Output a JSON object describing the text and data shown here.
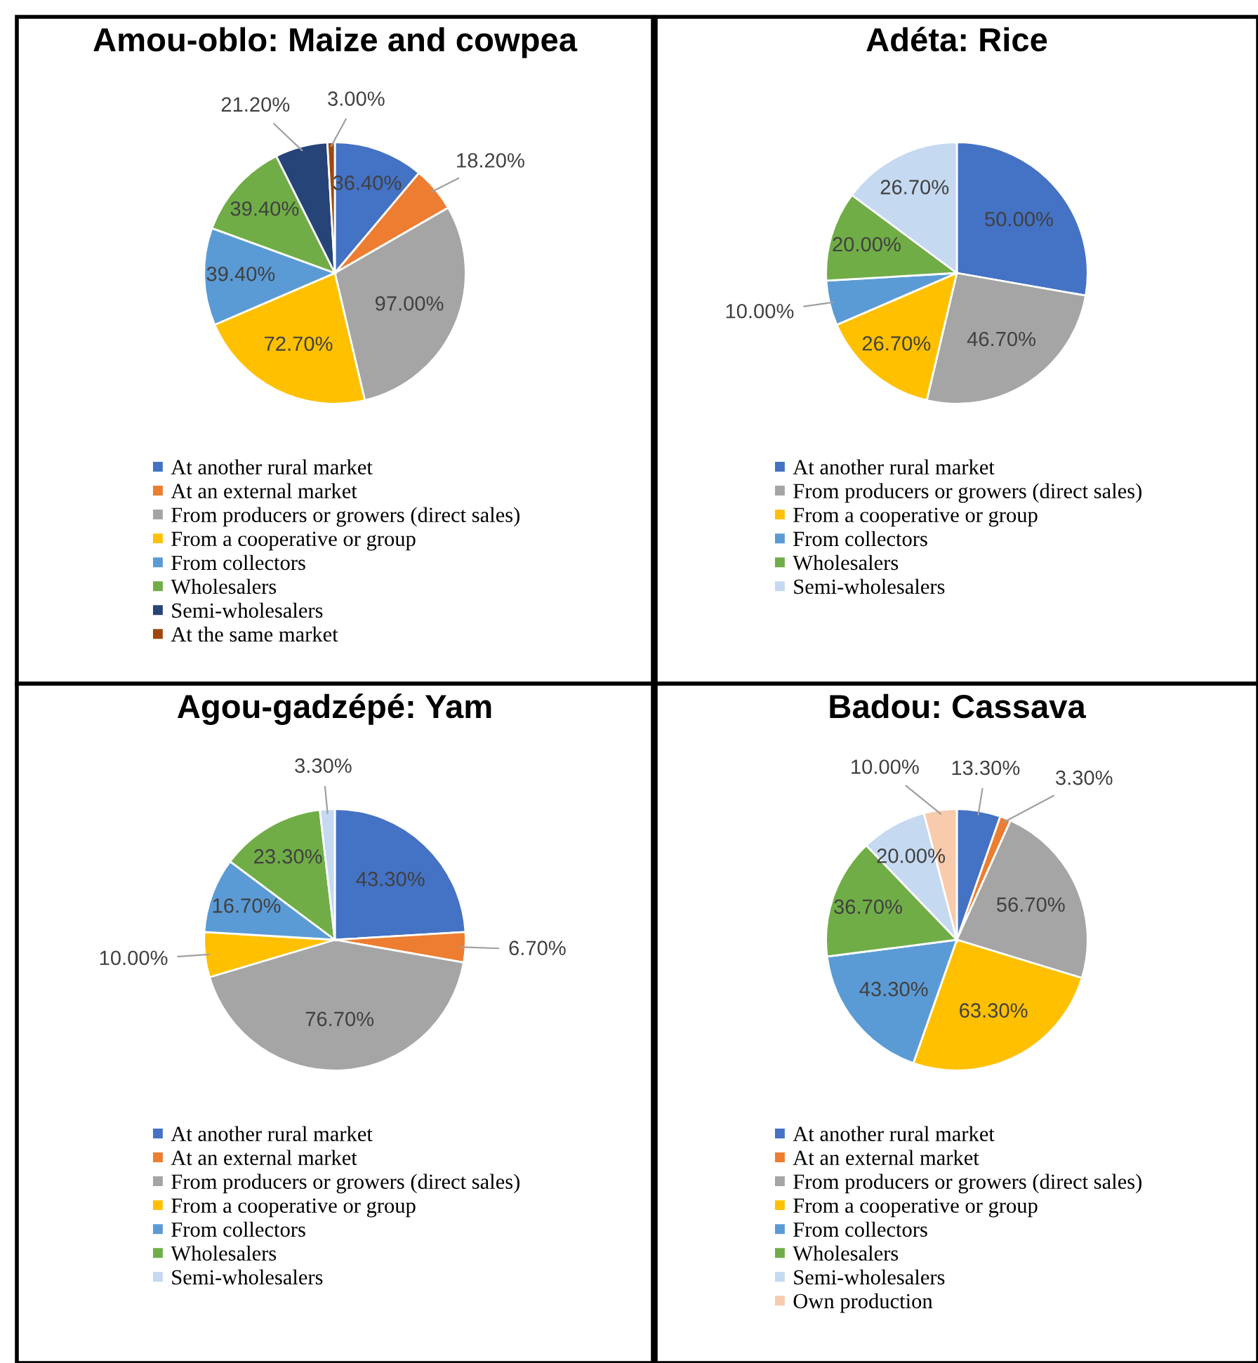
{
  "chart_data": [
    {
      "type": "pie",
      "title": "Amou-oblo: Maize and cowpea",
      "legend": "bottom",
      "categories": [
        "At another rural market",
        "At an external market",
        "From producers or growers (direct sales)",
        "From a cooperative or group",
        "From collectors",
        "Wholesalers",
        "Semi-wholesalers",
        "At the same market"
      ],
      "values": [
        36.4,
        18.2,
        97.0,
        72.7,
        39.4,
        39.4,
        21.2,
        3.0
      ],
      "value_labels": [
        "36.40%",
        "18.20%",
        "97.00%",
        "72.70%",
        "39.40%",
        "39.40%",
        "21.20%",
        "3.00%"
      ],
      "colors": [
        "#4472c4",
        "#ed7d31",
        "#a5a5a5",
        "#ffc000",
        "#5b9bd5",
        "#70ad47",
        "#264478",
        "#9e480e"
      ]
    },
    {
      "type": "pie",
      "title": "Adéta: Rice",
      "legend": "bottom",
      "categories": [
        "At another rural market",
        "From producers or growers (direct sales)",
        "From a cooperative or group",
        "From collectors",
        "Wholesalers",
        "Semi-wholesalers"
      ],
      "values": [
        50.0,
        46.7,
        26.7,
        10.0,
        20.0,
        26.7
      ],
      "value_labels": [
        "50.00%",
        "46.70%",
        "26.70%",
        "10.00%",
        "20.00%",
        "26.70%"
      ],
      "colors": [
        "#4472c4",
        "#a5a5a5",
        "#ffc000",
        "#5b9bd5",
        "#70ad47",
        "#c5d9f1"
      ]
    },
    {
      "type": "pie",
      "title": "Agou-gadzépé: Yam",
      "legend": "bottom",
      "categories": [
        "At another rural market",
        "At an external market",
        "From producers or growers (direct sales)",
        "From a cooperative or group",
        "From collectors",
        "Wholesalers",
        "Semi-wholesalers"
      ],
      "values": [
        43.3,
        6.7,
        76.7,
        10.0,
        16.7,
        23.3,
        3.3
      ],
      "value_labels": [
        "43.30%",
        "6.70%",
        "76.70%",
        "10.00%",
        "16.70%",
        "23.30%",
        "3.30%"
      ],
      "colors": [
        "#4472c4",
        "#ed7d31",
        "#a5a5a5",
        "#ffc000",
        "#5b9bd5",
        "#70ad47",
        "#c5d9f1"
      ]
    },
    {
      "type": "pie",
      "title": "Badou: Cassava",
      "legend": "bottom",
      "categories": [
        "At another rural market",
        "At an external market",
        "From producers or growers (direct sales)",
        "From a cooperative or group",
        "From collectors",
        "Wholesalers",
        "Semi-wholesalers",
        "Own production"
      ],
      "values": [
        13.3,
        3.3,
        56.7,
        63.3,
        43.3,
        36.7,
        20.0,
        10.0
      ],
      "value_labels": [
        "13.30%",
        "3.30%",
        "56.70%",
        "63.30%",
        "43.30%",
        "36.70%",
        "20.00%",
        "10.00%"
      ],
      "colors": [
        "#4472c4",
        "#ed7d31",
        "#a5a5a5",
        "#ffc000",
        "#5b9bd5",
        "#70ad47",
        "#c5d9f1",
        "#f8cbad"
      ]
    }
  ]
}
